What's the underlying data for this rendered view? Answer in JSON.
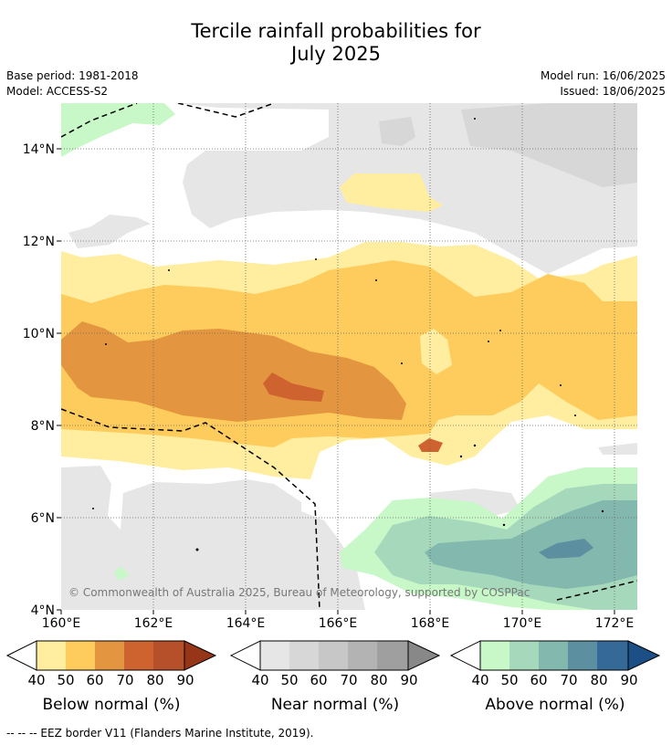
{
  "title": {
    "line1": "Tercile rainfall probabilities for",
    "line2": "July 2025"
  },
  "meta": {
    "base_period": "Base period: 1981-2018",
    "model": "Model: ACCESS-S2",
    "model_run": "Model run: 16/06/2025",
    "issued": "Issued: 18/06/2025"
  },
  "map": {
    "lon_range": [
      160,
      172.5
    ],
    "lat_range": [
      4,
      15
    ],
    "lon_ticks": [
      "160°E",
      "162°E",
      "164°E",
      "166°E",
      "168°E",
      "170°E",
      "172°E"
    ],
    "lat_ticks": [
      "4°N",
      "6°N",
      "8°N",
      "10°N",
      "12°N",
      "14°N"
    ],
    "copyright": "© Commonwealth of Australia 2025, Bureau of Meteorology, supported by COSPPac",
    "gridlines": true
  },
  "colorbars": [
    {
      "label": "Below normal (%)",
      "ticks": [
        "40",
        "50",
        "60",
        "70",
        "80",
        "90"
      ],
      "colors": [
        "#ffeda0",
        "#fecc5c",
        "#e3963f",
        "#cf6330",
        "#b5502a",
        "#973519"
      ]
    },
    {
      "label": "Near normal (%)",
      "ticks": [
        "40",
        "50",
        "60",
        "70",
        "80",
        "90"
      ],
      "colors": [
        "#e6e6e6",
        "#d7d7d7",
        "#c7c7c7",
        "#b3b3b3",
        "#9f9f9f",
        "#888888"
      ]
    },
    {
      "label": "Above normal (%)",
      "ticks": [
        "40",
        "50",
        "60",
        "70",
        "80",
        "90"
      ],
      "colors": [
        "#c8f7c8",
        "#a6d9bb",
        "#82b8ae",
        "#5c8fa0",
        "#356997",
        "#1b4f86"
      ]
    }
  ],
  "footnote": "--  --  -- EEZ border V11 (Flanders Marine Institute, 2019)."
}
